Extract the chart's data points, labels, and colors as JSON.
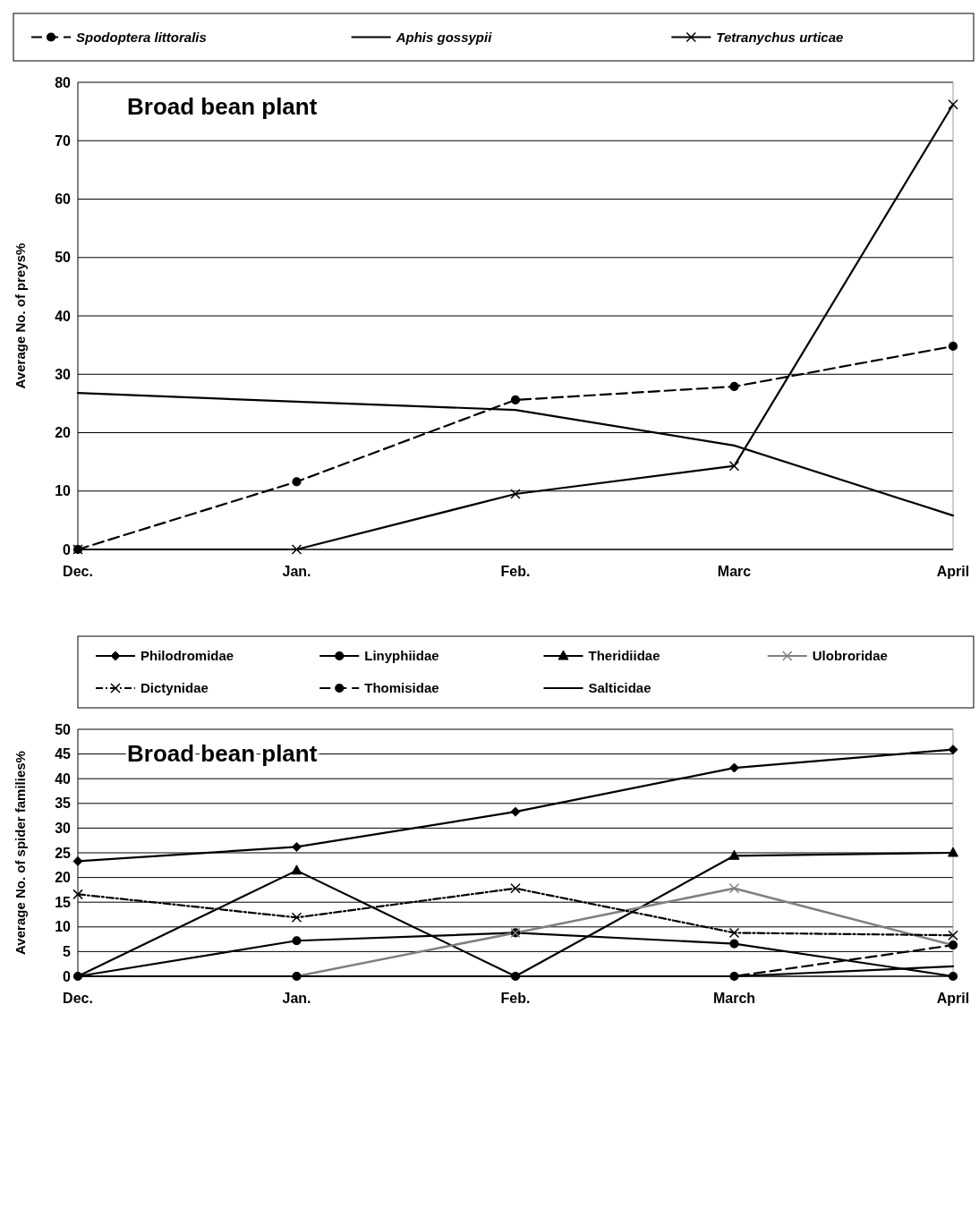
{
  "chart_data": [
    {
      "type": "line",
      "title": "Broad bean plant",
      "ylabel": "Average No. of preys%",
      "categories": [
        "Dec.",
        "Jan.",
        "Feb.",
        "Marc",
        "April"
      ],
      "ylim": [
        0,
        80
      ],
      "yticks": [
        0,
        10,
        20,
        30,
        40,
        50,
        60,
        70,
        80
      ],
      "grid": "y",
      "legend": "top",
      "series": [
        {
          "name": "Spodoptera littoralis",
          "color": "#000000",
          "values": [
            0,
            11.6,
            25.6,
            27.9,
            34.8
          ],
          "marker": "circle",
          "line_style": "dashed"
        },
        {
          "name": "Aphis gossypii",
          "color": "#000000",
          "values": [
            26.8,
            25.3,
            23.9,
            17.8,
            5.8
          ],
          "marker": "none",
          "line_style": "solid"
        },
        {
          "name": "Tetranychus urticae",
          "color": "#000000",
          "values": [
            0,
            0,
            9.5,
            14.3,
            76.2
          ],
          "marker": "cross",
          "line_style": "solid"
        }
      ]
    },
    {
      "type": "line",
      "title": "Broad bean plant",
      "ylabel": "Average No. of spider families%",
      "categories": [
        "Dec.",
        "Jan.",
        "Feb.",
        "March",
        "April"
      ],
      "ylim": [
        0,
        50
      ],
      "yticks": [
        0,
        5,
        10,
        15,
        20,
        25,
        30,
        35,
        40,
        45,
        50
      ],
      "grid": "y",
      "legend": "top",
      "series": [
        {
          "name": "Philodromidae",
          "color": "#000000",
          "values": [
            23.3,
            26.2,
            33.3,
            42.2,
            45.9
          ],
          "marker": "diamond",
          "line_style": "solid"
        },
        {
          "name": "Linyphiidae",
          "color": "#000000",
          "values": [
            0,
            7.2,
            8.8,
            6.6,
            0
          ],
          "marker": "circle",
          "line_style": "solid"
        },
        {
          "name": "Theridiidae",
          "color": "#000000",
          "values": [
            0,
            21.4,
            0,
            24.4,
            25
          ],
          "marker": "triangle",
          "line_style": "solid"
        },
        {
          "name": "Ulobroridae",
          "color": "#808080",
          "values": [
            null,
            0,
            8.8,
            17.8,
            6.3
          ],
          "marker": "cross",
          "line_style": "solid"
        },
        {
          "name": "Dictynidae",
          "color": "#000000",
          "values": [
            16.6,
            11.9,
            17.8,
            8.8,
            8.3
          ],
          "marker": "cross",
          "line_style": "dotted"
        },
        {
          "name": "Thomisidae",
          "color": "#000000",
          "values": [
            0,
            0,
            0,
            0,
            6.3
          ],
          "marker": "circle",
          "line_style": "dashed"
        },
        {
          "name": "Salticidae",
          "color": "#000000",
          "values": [
            0,
            0,
            0,
            0,
            2
          ],
          "marker": "none",
          "line_style": "solid"
        }
      ]
    }
  ]
}
